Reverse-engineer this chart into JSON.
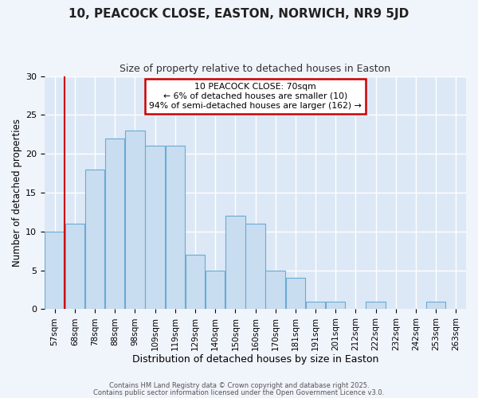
{
  "title1": "10, PEACOCK CLOSE, EASTON, NORWICH, NR9 5JD",
  "title2": "Size of property relative to detached houses in Easton",
  "xlabel": "Distribution of detached houses by size in Easton",
  "ylabel": "Number of detached properties",
  "bar_labels": [
    "57sqm",
    "68sqm",
    "78sqm",
    "88sqm",
    "98sqm",
    "109sqm",
    "119sqm",
    "129sqm",
    "140sqm",
    "150sqm",
    "160sqm",
    "170sqm",
    "181sqm",
    "191sqm",
    "201sqm",
    "212sqm",
    "222sqm",
    "232sqm",
    "242sqm",
    "253sqm",
    "263sqm"
  ],
  "bar_values": [
    10,
    11,
    18,
    22,
    23,
    21,
    21,
    7,
    5,
    12,
    11,
    5,
    4,
    1,
    1,
    0,
    1,
    0,
    0,
    1,
    0
  ],
  "bar_color": "#c9ddf0",
  "bar_edge_color": "#6aaad4",
  "fig_background_color": "#f0f4fb",
  "plot_background_color": "#dce8f5",
  "grid_color": "#ffffff",
  "vline_color": "#cc0000",
  "annotation_text": "10 PEACOCK CLOSE: 70sqm\n← 6% of detached houses are smaller (10)\n94% of semi-detached houses are larger (162) →",
  "annotation_box_color": "#ffffff",
  "annotation_box_edge": "#cc0000",
  "ylim": [
    0,
    30
  ],
  "yticks": [
    0,
    5,
    10,
    15,
    20,
    25,
    30
  ],
  "footer1": "Contains HM Land Registry data © Crown copyright and database right 2025.",
  "footer2": "Contains public sector information licensed under the Open Government Licence v3.0."
}
